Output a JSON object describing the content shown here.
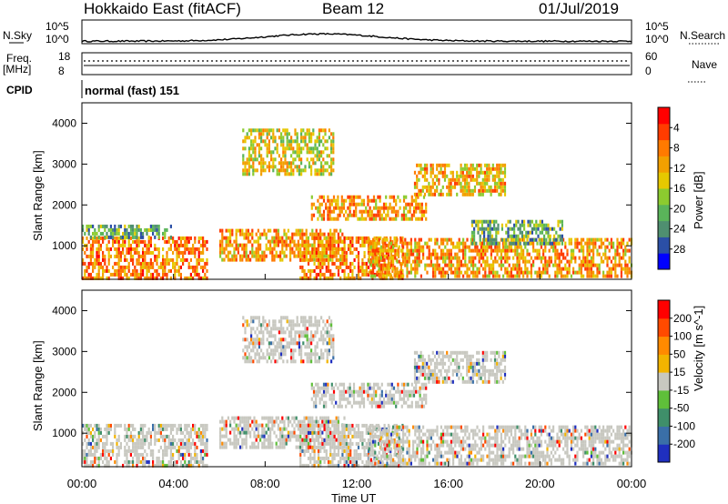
{
  "header": {
    "radar": "Hokkaido East (fitACF)",
    "beam": "Beam 12",
    "date": "01/Jul/2019"
  },
  "top_panels": {
    "nsky_label": "N.Sky",
    "nsearch_label": "N.Search",
    "scale_high": "10^5",
    "scale_low": "10^0",
    "freq_label": "Freq.",
    "freq_unit": "[MHz]",
    "freq_ticks": [
      "18",
      "8"
    ],
    "nave_label": "Nave",
    "nave_ticks": [
      "60",
      "0"
    ],
    "cpid_label": "CPID",
    "cpid_value": "normal (fast) 151"
  },
  "chart_data": [
    {
      "type": "heatmap",
      "name": "power",
      "ylabel": "Slant Range [km]",
      "xlabel": "",
      "ylim": [
        180,
        4500
      ],
      "xlim": [
        0,
        24
      ],
      "y_ticks": [
        "1000",
        "2000",
        "3000",
        "4000"
      ],
      "colorbar": {
        "label": "Power [dB]",
        "ticks": [
          "4",
          "8",
          "12",
          "16",
          "20",
          "24",
          "28"
        ],
        "colors": [
          "#0000ff",
          "#2b4fa6",
          "#4f8f70",
          "#5ab45a",
          "#8ccb2f",
          "#e6c800",
          "#f2a000",
          "#ff7a00",
          "#ff3c00",
          "#ff0000"
        ]
      },
      "bands": [
        {
          "t0": 0.0,
          "t1": 5.5,
          "r0": 250,
          "r1": 1250,
          "level": 0.95
        },
        {
          "t0": 0.0,
          "t1": 4.0,
          "r0": 1250,
          "r1": 1600,
          "level": 0.55
        },
        {
          "t0": 6.0,
          "t1": 11.5,
          "r0": 700,
          "r1": 1500,
          "level": 0.9
        },
        {
          "t0": 9.5,
          "t1": 14.0,
          "r0": 250,
          "r1": 1300,
          "level": 0.95
        },
        {
          "t0": 10.0,
          "t1": 15.0,
          "r0": 1700,
          "r1": 2300,
          "level": 0.9
        },
        {
          "t0": 14.5,
          "t1": 18.5,
          "r0": 2300,
          "r1": 3100,
          "level": 0.85
        },
        {
          "t0": 12.5,
          "t1": 24.0,
          "r0": 300,
          "r1": 1200,
          "level": 0.9
        },
        {
          "t0": 17.0,
          "t1": 21.0,
          "r0": 1100,
          "r1": 1700,
          "level": 0.6
        },
        {
          "t0": 7.0,
          "t1": 11.0,
          "r0": 2800,
          "r1": 3900,
          "level": 0.75
        }
      ]
    },
    {
      "type": "heatmap",
      "name": "velocity",
      "ylabel": "Slant Range [km]",
      "xlabel": "Time UT",
      "ylim": [
        180,
        4500
      ],
      "xlim": [
        0,
        24
      ],
      "y_ticks": [
        "1000",
        "2000",
        "3000",
        "4000"
      ],
      "x_ticks": [
        "00:00",
        "04:00",
        "08:00",
        "12:00",
        "16:00",
        "20:00",
        "00:00"
      ],
      "colorbar": {
        "label": "Velocity [m s^-1]",
        "ticks": [
          "200",
          "100",
          "50",
          "15",
          "-15",
          "-50",
          "-100",
          "-200"
        ],
        "colors": [
          "#1f2fbf",
          "#3a6fa8",
          "#3f8f6a",
          "#5fbf3a",
          "#c8c8c0",
          "#f2b400",
          "#ff8a00",
          "#ff4a00",
          "#ff0000"
        ]
      },
      "bands": [
        {
          "t0": 0.0,
          "t1": 5.5,
          "r0": 250,
          "r1": 1250,
          "level": 0.5
        },
        {
          "t0": 6.0,
          "t1": 11.5,
          "r0": 700,
          "r1": 1500,
          "level": 0.5
        },
        {
          "t0": 9.5,
          "t1": 14.0,
          "r0": 250,
          "r1": 1300,
          "level": 0.5
        },
        {
          "t0": 10.0,
          "t1": 15.0,
          "r0": 1700,
          "r1": 2300,
          "level": 0.5
        },
        {
          "t0": 14.5,
          "t1": 18.5,
          "r0": 2300,
          "r1": 3100,
          "level": 0.5
        },
        {
          "t0": 12.5,
          "t1": 24.0,
          "r0": 300,
          "r1": 1200,
          "level": 0.5
        },
        {
          "t0": 7.0,
          "t1": 11.0,
          "r0": 2800,
          "r1": 3900,
          "level": 0.5
        }
      ]
    }
  ]
}
